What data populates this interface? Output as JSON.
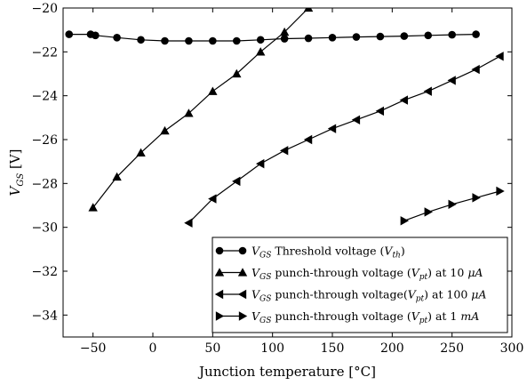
{
  "chart_data": {
    "type": "line",
    "xlabel": "Junction temperature [°C]",
    "ylabel": {
      "main": "V",
      "sub": "GS",
      "unit": " [V]"
    },
    "xlim": [
      -75,
      300
    ],
    "ylim": [
      -35,
      -20
    ],
    "xticks": [
      -50,
      0,
      50,
      100,
      150,
      200,
      250,
      300
    ],
    "yticks": [
      -34,
      -32,
      -30,
      -28,
      -26,
      -24,
      -22,
      -20
    ],
    "xtick_labels": [
      "−50",
      "0",
      "50",
      "100",
      "150",
      "200",
      "250",
      "300"
    ],
    "ytick_labels": [
      "−34",
      "−32",
      "−30",
      "−28",
      "−26",
      "−24",
      "−22",
      "−20"
    ],
    "grid": false,
    "legend_position": "lower-right",
    "series": [
      {
        "name": "V_GS Threshold voltage (V_th)",
        "legend": {
          "v": "V",
          "vsub": "GS",
          "text": " Threshold voltage (",
          "v2": "V",
          "v2sub": "th",
          "tail": ")"
        },
        "marker": "circle",
        "color": "#000000",
        "x": [
          -70,
          -52,
          -48,
          -30,
          -10,
          10,
          30,
          50,
          70,
          90,
          110,
          130,
          150,
          170,
          190,
          210,
          230,
          250,
          270
        ],
        "y": [
          -21.2,
          -21.2,
          -21.25,
          -21.35,
          -21.45,
          -21.5,
          -21.5,
          -21.5,
          -21.5,
          -21.45,
          -21.4,
          -21.38,
          -21.35,
          -21.32,
          -21.3,
          -21.28,
          -21.25,
          -21.22,
          -21.2
        ]
      },
      {
        "name": "V_GS punch-through voltage (V_pt) at 10 μA",
        "legend": {
          "v": "V",
          "vsub": "GS",
          "text": " punch-through voltage (",
          "v2": "V",
          "v2sub": "pt",
          "tail": ") at 10 ",
          "unit": "μA"
        },
        "marker": "triangle-up",
        "color": "#000000",
        "x": [
          -50,
          -30,
          -10,
          10,
          30,
          50,
          70,
          90,
          110,
          130
        ],
        "y": [
          -29.1,
          -27.7,
          -26.6,
          -25.6,
          -24.8,
          -23.8,
          -23.0,
          -22.0,
          -21.1,
          -20.0
        ]
      },
      {
        "name": "V_GS punch-through voltage(V_pt) at 100 μA",
        "legend": {
          "v": "V",
          "vsub": "GS",
          "text": " punch-through voltage(",
          "v2": "V",
          "v2sub": "pt",
          "tail": ") at 100 ",
          "unit": "μA"
        },
        "marker": "triangle-left",
        "color": "#000000",
        "x": [
          30,
          50,
          70,
          90,
          110,
          130,
          150,
          170,
          190,
          210,
          230,
          250,
          270,
          290
        ],
        "y": [
          -29.8,
          -28.7,
          -27.9,
          -27.1,
          -26.5,
          -26.0,
          -25.5,
          -25.1,
          -24.7,
          -24.2,
          -23.8,
          -23.3,
          -22.8,
          -22.2
        ]
      },
      {
        "name": "V_GS punch-through voltage (V_pt) at 1 mA",
        "legend": {
          "v": "V",
          "vsub": "GS",
          "text": " punch-through voltage (",
          "v2": "V",
          "v2sub": "pt",
          "tail": ") at 1 ",
          "unit": "mA"
        },
        "marker": "triangle-right",
        "color": "#000000",
        "x": [
          210,
          230,
          250,
          270,
          290
        ],
        "y": [
          -29.7,
          -29.3,
          -28.95,
          -28.65,
          -28.35
        ]
      }
    ]
  }
}
